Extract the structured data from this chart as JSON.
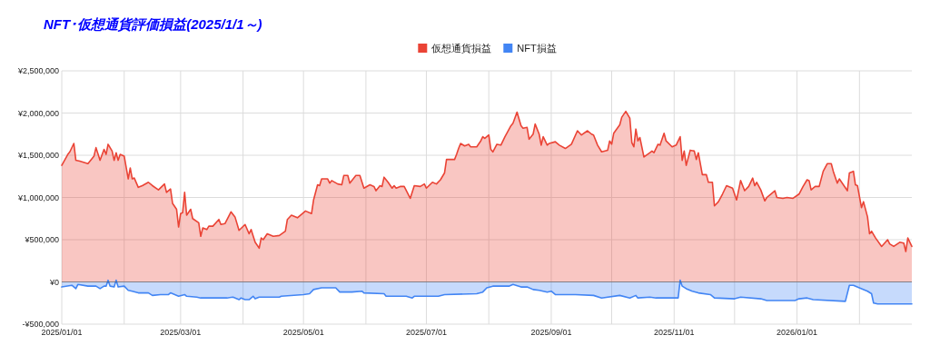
{
  "chart_data": {
    "type": "area",
    "title": "NFT･仮想通貨評価損益(2025/1/1～)",
    "legend": "top",
    "grid": true,
    "xlim": [
      "2025-01-01",
      "2026-02-27"
    ],
    "xticks": [
      {
        "value": "2025-01-01",
        "label": "2025/01/01"
      },
      {
        "value": "2025-02-01",
        "label": null
      },
      {
        "value": "2025-03-01",
        "label": "2025/03/01"
      },
      {
        "value": "2025-04-01",
        "label": null
      },
      {
        "value": "2025-05-01",
        "label": "2025/05/01"
      },
      {
        "value": "2025-06-01",
        "label": null
      },
      {
        "value": "2025-07-01",
        "label": "2025/07/01"
      },
      {
        "value": "2025-08-01",
        "label": null
      },
      {
        "value": "2025-09-01",
        "label": "2025/09/01"
      },
      {
        "value": "2025-10-01",
        "label": null
      },
      {
        "value": "2025-11-01",
        "label": "2025/11/01"
      },
      {
        "value": "2025-12-01",
        "label": null
      },
      {
        "value": "2026-01-01",
        "label": "2026/01/01"
      },
      {
        "value": "2026-02-01",
        "label": null
      }
    ],
    "ylim": [
      -500000,
      2500000
    ],
    "yticks": [
      {
        "value": -500000,
        "label": "-¥500,000"
      },
      {
        "value": 0,
        "label": "¥0"
      },
      {
        "value": 500000,
        "label": "¥500,000"
      },
      {
        "value": 1000000,
        "label": "¥1,000,000"
      },
      {
        "value": 1500000,
        "label": "¥1,500,000"
      },
      {
        "value": 2000000,
        "label": "¥2,000,000"
      },
      {
        "value": 2500000,
        "label": "¥2,500,000"
      }
    ],
    "series": [
      {
        "name": "仮想通貨損益",
        "color": "#ea4335",
        "x": [
          "2025-01-01",
          "2025-01-04",
          "2025-01-05",
          "2025-01-07",
          "2025-01-08",
          "2025-01-10",
          "2025-01-14",
          "2025-01-15",
          "2025-01-17",
          "2025-01-18",
          "2025-01-20",
          "2025-01-22",
          "2025-01-23",
          "2025-01-24",
          "2025-01-26",
          "2025-01-27",
          "2025-01-28",
          "2025-01-29",
          "2025-01-30",
          "2025-02-01",
          "2025-02-03",
          "2025-02-04",
          "2025-02-05",
          "2025-02-06",
          "2025-02-08",
          "2025-02-10",
          "2025-02-13",
          "2025-02-15",
          "2025-02-18",
          "2025-02-21",
          "2025-02-22",
          "2025-02-24",
          "2025-02-25",
          "2025-02-27",
          "2025-02-28",
          "2025-03-01",
          "2025-03-02",
          "2025-03-03",
          "2025-03-04",
          "2025-03-06",
          "2025-03-07",
          "2025-03-10",
          "2025-03-11",
          "2025-03-12",
          "2025-03-14",
          "2025-03-15",
          "2025-03-17",
          "2025-03-20",
          "2025-03-21",
          "2025-03-23",
          "2025-03-26",
          "2025-03-28",
          "2025-03-30",
          "2025-04-02",
          "2025-04-04",
          "2025-04-05",
          "2025-04-07",
          "2025-04-09",
          "2025-04-10",
          "2025-04-11",
          "2025-04-13",
          "2025-04-16",
          "2025-04-19",
          "2025-04-22",
          "2025-04-23",
          "2025-04-25",
          "2025-04-28",
          "2025-05-02",
          "2025-05-05",
          "2025-05-06",
          "2025-05-08",
          "2025-05-09",
          "2025-05-10",
          "2025-05-13",
          "2025-05-14",
          "2025-05-15",
          "2025-05-18",
          "2025-05-20",
          "2025-05-21",
          "2025-05-23",
          "2025-05-24",
          "2025-05-27",
          "2025-05-29",
          "2025-05-31",
          "2025-06-03",
          "2025-06-05",
          "2025-06-06",
          "2025-06-08",
          "2025-06-09",
          "2025-06-10",
          "2025-06-12",
          "2025-06-14",
          "2025-06-15",
          "2025-06-16",
          "2025-06-18",
          "2025-06-20",
          "2025-06-23",
          "2025-06-25",
          "2025-06-28",
          "2025-06-30",
          "2025-07-01",
          "2025-07-04",
          "2025-07-06",
          "2025-07-08",
          "2025-07-10",
          "2025-07-11",
          "2025-07-13",
          "2025-07-15",
          "2025-07-16",
          "2025-07-17",
          "2025-07-18",
          "2025-07-20",
          "2025-07-22",
          "2025-07-23",
          "2025-07-26",
          "2025-07-28",
          "2025-07-29",
          "2025-07-30",
          "2025-08-01",
          "2025-08-02",
          "2025-08-03",
          "2025-08-05",
          "2025-08-07",
          "2025-08-09",
          "2025-08-12",
          "2025-08-13",
          "2025-08-15",
          "2025-08-17",
          "2025-08-18",
          "2025-08-20",
          "2025-08-21",
          "2025-08-23",
          "2025-08-24",
          "2025-08-26",
          "2025-08-27",
          "2025-08-28",
          "2025-08-30",
          "2025-08-31",
          "2025-09-03",
          "2025-09-05",
          "2025-09-08",
          "2025-09-11",
          "2025-09-14",
          "2025-09-16",
          "2025-09-19",
          "2025-09-21",
          "2025-09-22",
          "2025-09-24",
          "2025-09-26",
          "2025-09-29",
          "2025-09-30",
          "2025-10-01",
          "2025-10-02",
          "2025-10-05",
          "2025-10-06",
          "2025-10-08",
          "2025-10-10",
          "2025-10-11",
          "2025-10-12",
          "2025-10-13",
          "2025-10-14",
          "2025-10-15",
          "2025-10-17",
          "2025-10-20",
          "2025-10-21",
          "2025-10-22",
          "2025-10-24",
          "2025-10-25",
          "2025-10-27",
          "2025-10-28",
          "2025-10-31",
          "2025-11-02",
          "2025-11-04",
          "2025-11-05",
          "2025-11-06",
          "2025-11-07",
          "2025-11-09",
          "2025-11-11",
          "2025-11-12",
          "2025-11-13",
          "2025-11-15",
          "2025-11-17",
          "2025-11-18",
          "2025-11-20",
          "2025-11-21",
          "2025-11-23",
          "2025-11-25",
          "2025-11-27",
          "2025-11-30",
          "2025-12-02",
          "2025-12-04",
          "2025-12-06",
          "2025-12-08",
          "2025-12-10",
          "2025-12-11",
          "2025-12-12",
          "2025-12-14",
          "2025-12-16",
          "2025-12-17",
          "2025-12-19",
          "2025-12-21",
          "2025-12-22",
          "2025-12-25",
          "2025-12-27",
          "2025-12-30",
          "2026-01-02",
          "2026-01-04",
          "2026-01-06",
          "2026-01-07",
          "2026-01-08",
          "2026-01-10",
          "2026-01-12",
          "2026-01-14",
          "2026-01-16",
          "2026-01-18",
          "2026-01-19",
          "2026-01-21",
          "2026-01-22",
          "2026-01-24",
          "2026-01-26",
          "2026-01-27",
          "2026-01-29",
          "2026-01-30",
          "2026-01-31",
          "2026-02-02",
          "2026-02-03",
          "2026-02-05",
          "2026-02-06",
          "2026-02-07",
          "2026-02-09",
          "2026-02-12",
          "2026-02-15",
          "2026-02-16",
          "2026-02-18",
          "2026-02-21",
          "2026-02-23",
          "2026-02-24",
          "2026-02-25",
          "2026-02-27"
        ],
        "values": [
          1380000,
          1510000,
          1540000,
          1640000,
          1440000,
          1430000,
          1400000,
          1430000,
          1490000,
          1590000,
          1440000,
          1570000,
          1510000,
          1630000,
          1550000,
          1440000,
          1530000,
          1440000,
          1510000,
          1490000,
          1220000,
          1350000,
          1220000,
          1230000,
          1120000,
          1140000,
          1180000,
          1140000,
          1090000,
          1160000,
          1060000,
          1100000,
          930000,
          860000,
          650000,
          810000,
          820000,
          1060000,
          790000,
          860000,
          750000,
          700000,
          540000,
          640000,
          620000,
          660000,
          660000,
          740000,
          680000,
          690000,
          830000,
          770000,
          610000,
          680000,
          570000,
          620000,
          470000,
          400000,
          520000,
          500000,
          570000,
          540000,
          550000,
          600000,
          740000,
          790000,
          760000,
          840000,
          810000,
          970000,
          1150000,
          1140000,
          1220000,
          1220000,
          1170000,
          1200000,
          1160000,
          1150000,
          1260000,
          1260000,
          1170000,
          1260000,
          1260000,
          1110000,
          1150000,
          1130000,
          1080000,
          1140000,
          1130000,
          1240000,
          1180000,
          1110000,
          1140000,
          1110000,
          1130000,
          1130000,
          990000,
          1140000,
          1130000,
          1160000,
          1110000,
          1180000,
          1160000,
          1210000,
          1290000,
          1450000,
          1450000,
          1450000,
          1510000,
          1580000,
          1640000,
          1610000,
          1630000,
          1600000,
          1600000,
          1670000,
          1720000,
          1700000,
          1740000,
          1570000,
          1540000,
          1630000,
          1620000,
          1720000,
          1850000,
          1880000,
          2010000,
          1850000,
          1820000,
          1830000,
          1690000,
          1750000,
          1870000,
          1750000,
          1620000,
          1720000,
          1620000,
          1640000,
          1660000,
          1620000,
          1580000,
          1630000,
          1790000,
          1740000,
          1790000,
          1750000,
          1740000,
          1620000,
          1540000,
          1560000,
          1670000,
          1630000,
          1760000,
          1860000,
          1950000,
          2020000,
          1940000,
          1650000,
          1600000,
          1810000,
          1670000,
          1710000,
          1480000,
          1530000,
          1550000,
          1530000,
          1630000,
          1620000,
          1760000,
          1670000,
          1600000,
          1620000,
          1720000,
          1440000,
          1550000,
          1380000,
          1560000,
          1550000,
          1450000,
          1530000,
          1270000,
          1270000,
          1180000,
          1180000,
          900000,
          950000,
          1040000,
          1140000,
          1110000,
          970000,
          1200000,
          1080000,
          1130000,
          1230000,
          1140000,
          1180000,
          1090000,
          960000,
          1000000,
          1040000,
          1080000,
          1000000,
          990000,
          1000000,
          990000,
          1040000,
          1130000,
          1210000,
          1200000,
          1090000,
          1130000,
          1130000,
          1310000,
          1400000,
          1400000,
          1310000,
          1170000,
          1220000,
          1150000,
          1080000,
          1290000,
          1310000,
          1150000,
          1140000,
          880000,
          950000,
          770000,
          570000,
          600000,
          520000,
          420000,
          500000,
          450000,
          420000,
          470000,
          460000,
          360000,
          520000,
          420000
        ]
      },
      {
        "name": "NFT損益",
        "color": "#4285f4",
        "x": [
          "2025-01-01",
          "2025-01-06",
          "2025-01-08",
          "2025-01-09",
          "2025-01-14",
          "2025-01-18",
          "2025-01-20",
          "2025-01-22",
          "2025-01-23",
          "2025-01-24",
          "2025-01-25",
          "2025-01-27",
          "2025-01-28",
          "2025-01-29",
          "2025-02-01",
          "2025-02-03",
          "2025-02-05",
          "2025-02-08",
          "2025-02-13",
          "2025-02-15",
          "2025-02-19",
          "2025-02-23",
          "2025-02-24",
          "2025-02-28",
          "2025-03-03",
          "2025-03-04",
          "2025-03-09",
          "2025-03-11",
          "2025-03-16",
          "2025-03-24",
          "2025-03-27",
          "2025-03-30",
          "2025-03-31",
          "2025-04-02",
          "2025-04-04",
          "2025-04-06",
          "2025-04-07",
          "2025-04-09",
          "2025-04-11",
          "2025-04-19",
          "2025-04-20",
          "2025-05-01",
          "2025-05-04",
          "2025-05-06",
          "2025-05-10",
          "2025-05-17",
          "2025-05-19",
          "2025-05-25",
          "2025-05-30",
          "2025-05-31",
          "2025-06-10",
          "2025-06-11",
          "2025-06-21",
          "2025-06-24",
          "2025-06-25",
          "2025-07-07",
          "2025-07-10",
          "2025-07-26",
          "2025-07-29",
          "2025-07-31",
          "2025-08-03",
          "2025-08-08",
          "2025-08-11",
          "2025-08-13",
          "2025-08-17",
          "2025-08-20",
          "2025-08-23",
          "2025-08-26",
          "2025-08-30",
          "2025-09-01",
          "2025-09-03",
          "2025-09-13",
          "2025-09-22",
          "2025-09-26",
          "2025-10-05",
          "2025-10-10",
          "2025-10-13",
          "2025-10-14",
          "2025-10-20",
          "2025-10-23",
          "2025-11-03",
          "2025-11-04",
          "2025-11-05",
          "2025-11-07",
          "2025-11-10",
          "2025-11-13",
          "2025-11-19",
          "2025-11-21",
          "2025-12-01",
          "2025-12-04",
          "2025-12-14",
          "2025-12-17",
          "2025-12-31",
          "2026-01-02",
          "2026-01-06",
          "2026-01-09",
          "2026-01-25",
          "2026-01-27",
          "2026-01-29",
          "2026-02-02",
          "2026-02-05",
          "2026-02-07",
          "2026-02-08",
          "2026-02-10",
          "2026-02-26",
          "2026-02-27"
        ],
        "values": [
          -60000,
          -40000,
          -80000,
          -30000,
          -50000,
          -50000,
          -80000,
          -50000,
          -50000,
          20000,
          -50000,
          -60000,
          20000,
          -60000,
          -50000,
          -100000,
          -110000,
          -130000,
          -130000,
          -160000,
          -150000,
          -150000,
          -130000,
          -170000,
          -150000,
          -170000,
          -180000,
          -190000,
          -190000,
          -190000,
          -180000,
          -210000,
          -190000,
          -210000,
          -210000,
          -170000,
          -200000,
          -180000,
          -180000,
          -180000,
          -170000,
          -150000,
          -140000,
          -90000,
          -70000,
          -70000,
          -120000,
          -120000,
          -110000,
          -130000,
          -140000,
          -170000,
          -170000,
          -190000,
          -170000,
          -170000,
          -150000,
          -140000,
          -120000,
          -70000,
          -50000,
          -50000,
          -50000,
          -30000,
          -60000,
          -60000,
          -90000,
          -100000,
          -120000,
          -110000,
          -150000,
          -150000,
          -160000,
          -190000,
          -160000,
          -190000,
          -160000,
          -190000,
          -180000,
          -190000,
          -190000,
          20000,
          -50000,
          -80000,
          -110000,
          -130000,
          -150000,
          -190000,
          -200000,
          -180000,
          -200000,
          -220000,
          -220000,
          -200000,
          -190000,
          -210000,
          -230000,
          -40000,
          -40000,
          -80000,
          -110000,
          -140000,
          -250000,
          -260000,
          -260000,
          -260000
        ]
      }
    ]
  }
}
